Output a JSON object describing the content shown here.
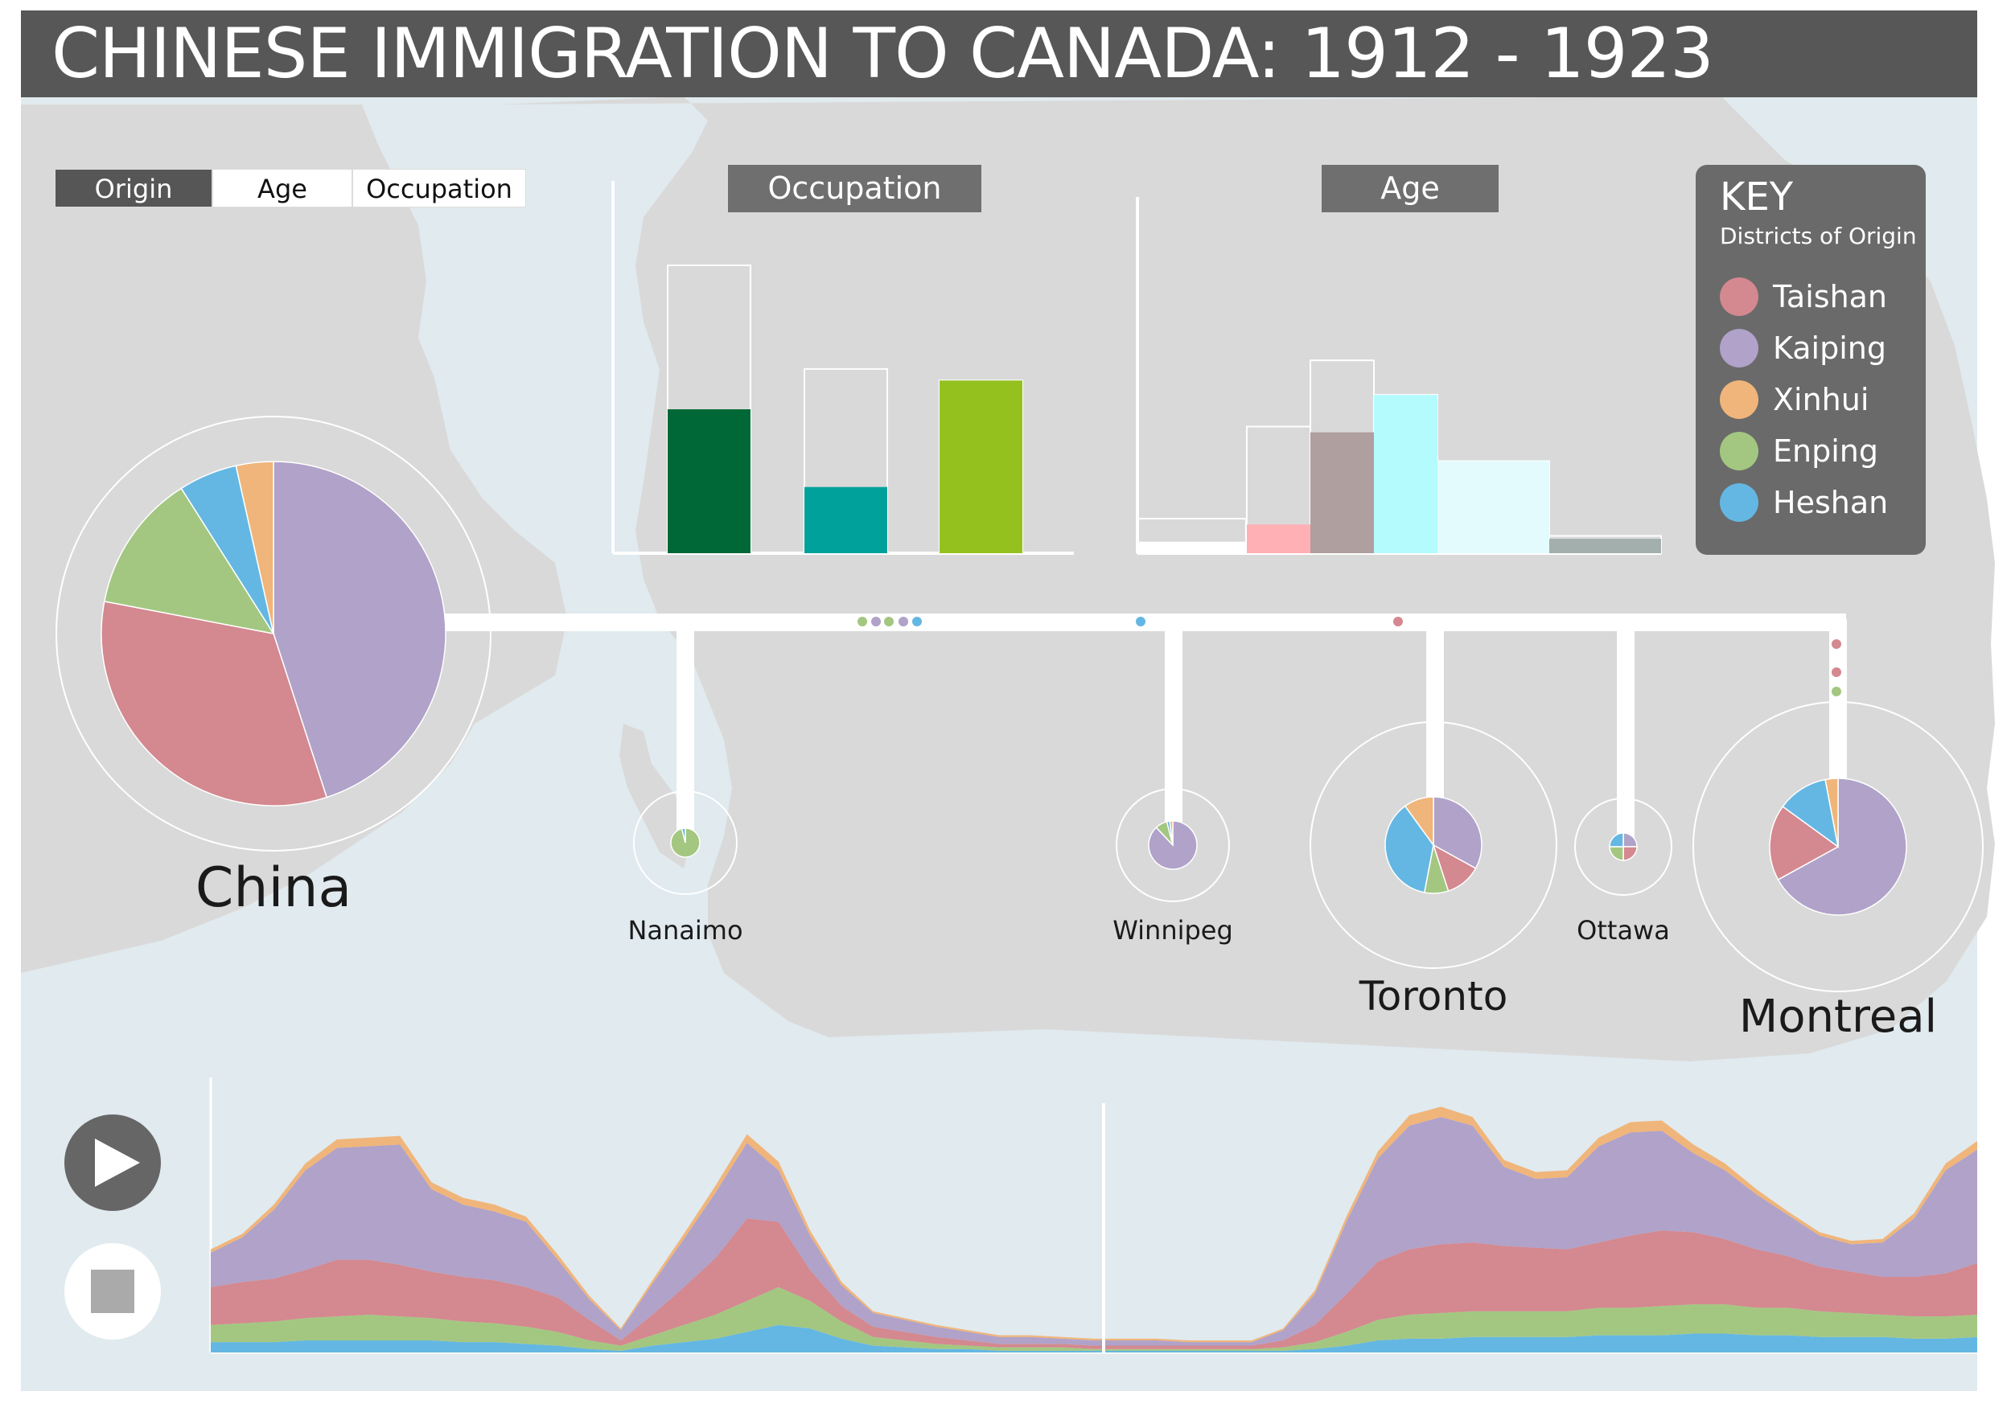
{
  "header": {
    "title": "CHINESE IMMIGRATION TO CANADA: 1912 - 1923"
  },
  "tabs": [
    {
      "label": "Origin",
      "active": true
    },
    {
      "label": "Age",
      "active": false
    },
    {
      "label": "Occupation",
      "active": false
    }
  ],
  "key": {
    "title": "KEY",
    "subtitle": "Districts of Origin",
    "items": [
      {
        "label": "Taishan",
        "color": "#d4888f"
      },
      {
        "label": "Kaiping",
        "color": "#b0a2c9"
      },
      {
        "label": "Xinhui",
        "color": "#f0b57a"
      },
      {
        "label": "Enping",
        "color": "#a3c781"
      },
      {
        "label": "Heshan",
        "color": "#64b7e3"
      }
    ]
  },
  "controls": {
    "play_icon": "play-icon",
    "stop_icon": "stop-icon"
  },
  "chart_data": [
    {
      "type": "bar",
      "title": "Occupation",
      "xlabel": "",
      "ylabel": "",
      "ylim": [
        0,
        100
      ],
      "categories": [
        "",
        "",
        ""
      ],
      "series": [
        {
          "values": [
            100,
            64,
            60
          ]
        },
        {
          "values": [
            50,
            23,
            60
          ]
        }
      ],
      "colors": [
        "#006837",
        "#00a19a",
        "#95c11f"
      ]
    },
    {
      "type": "bar",
      "title": "Age",
      "xlabel": "",
      "ylabel": "",
      "ylim": [
        0,
        100
      ],
      "categories": [
        "",
        "",
        "",
        "",
        "",
        ""
      ],
      "series": [
        {
          "values": [
            12,
            44,
            67,
            55,
            32,
            6
          ]
        },
        {
          "values": [
            4,
            10,
            42,
            55,
            32,
            5
          ]
        }
      ],
      "colors": [
        "#ffffff",
        "#ffb0b5",
        "#b09f9f",
        "#b4fbfd",
        "#e3fbfc",
        "#a3afad"
      ]
    },
    {
      "type": "pie",
      "title": "China",
      "categories": [
        "Taishan",
        "Kaiping",
        "Xinhui",
        "Enping",
        "Heshan"
      ],
      "values": [
        33,
        45,
        3.5,
        13,
        5.5
      ]
    },
    {
      "type": "pie",
      "title": "Nanaimo",
      "categories": [
        "Taishan",
        "Kaiping",
        "Xinhui",
        "Enping",
        "Heshan"
      ],
      "values": [
        0,
        0,
        0,
        96,
        4
      ]
    },
    {
      "type": "pie",
      "title": "Winnipeg",
      "categories": [
        "Taishan",
        "Kaiping",
        "Xinhui",
        "Enping",
        "Heshan"
      ],
      "values": [
        0,
        88,
        2,
        8,
        2
      ]
    },
    {
      "type": "pie",
      "title": "Toronto",
      "categories": [
        "Taishan",
        "Kaiping",
        "Xinhui",
        "Enping",
        "Heshan"
      ],
      "values": [
        12,
        33,
        10,
        8,
        37
      ]
    },
    {
      "type": "pie",
      "title": "Ottawa",
      "categories": [
        "Taishan",
        "Kaiping",
        "Xinhui",
        "Enping",
        "Heshan"
      ],
      "values": [
        25,
        25,
        0,
        25,
        25
      ]
    },
    {
      "type": "pie",
      "title": "Montreal",
      "categories": [
        "Taishan",
        "Kaiping",
        "Xinhui",
        "Enping",
        "Heshan"
      ],
      "values": [
        18,
        67,
        3,
        0,
        12
      ]
    },
    {
      "type": "area",
      "title": "",
      "stacked": true,
      "x": [
        0,
        1,
        2,
        3,
        4,
        5,
        6,
        7,
        8,
        9,
        10,
        11,
        12,
        13,
        14,
        15,
        16,
        17,
        18,
        19,
        20,
        21,
        22,
        23,
        24,
        25,
        26,
        27,
        28,
        29,
        30,
        31,
        32,
        33,
        34,
        35,
        36,
        37,
        38,
        39,
        40,
        41,
        42,
        43,
        44,
        45,
        46,
        47,
        48,
        49,
        50,
        51,
        52,
        53,
        54,
        55,
        56
      ],
      "series": [
        {
          "name": "Heshan",
          "values": [
            6,
            6,
            6,
            7,
            7,
            7,
            7,
            7,
            6,
            6,
            5,
            4,
            2,
            1,
            4,
            6,
            8,
            12,
            16,
            14,
            8,
            4,
            3,
            2,
            2,
            1,
            1,
            1,
            1,
            1,
            1,
            1,
            1,
            1,
            1,
            2,
            4,
            7,
            8,
            8,
            9,
            9,
            9,
            9,
            10,
            10,
            10,
            11,
            11,
            10,
            10,
            9,
            9,
            9,
            8,
            8,
            9
          ]
        },
        {
          "name": "Enping",
          "values": [
            10,
            11,
            12,
            13,
            14,
            15,
            14,
            13,
            12,
            11,
            10,
            8,
            5,
            3,
            6,
            10,
            14,
            18,
            22,
            16,
            10,
            5,
            4,
            3,
            2,
            2,
            2,
            2,
            1,
            1,
            1,
            1,
            1,
            1,
            2,
            4,
            8,
            12,
            14,
            15,
            15,
            15,
            15,
            15,
            16,
            16,
            17,
            17,
            17,
            16,
            16,
            15,
            14,
            13,
            13,
            13,
            13
          ]
        },
        {
          "name": "Taishan",
          "values": [
            22,
            24,
            25,
            28,
            33,
            32,
            30,
            27,
            26,
            25,
            23,
            20,
            12,
            3,
            12,
            22,
            33,
            48,
            38,
            18,
            9,
            6,
            5,
            4,
            3,
            2,
            2,
            2,
            2,
            2,
            2,
            2,
            2,
            2,
            4,
            10,
            22,
            34,
            38,
            40,
            40,
            38,
            37,
            36,
            38,
            42,
            44,
            42,
            38,
            34,
            30,
            26,
            24,
            22,
            23,
            25,
            30
          ]
        },
        {
          "name": "Kaiping",
          "values": [
            20,
            26,
            40,
            58,
            65,
            66,
            70,
            48,
            42,
            40,
            38,
            22,
            12,
            6,
            18,
            28,
            38,
            44,
            30,
            20,
            12,
            8,
            7,
            6,
            5,
            4,
            4,
            3,
            3,
            3,
            3,
            2,
            2,
            2,
            6,
            18,
            42,
            60,
            72,
            74,
            68,
            46,
            40,
            42,
            56,
            60,
            58,
            46,
            40,
            32,
            24,
            18,
            16,
            20,
            34,
            60,
            66
          ]
        },
        {
          "name": "Xinhui",
          "values": [
            2,
            2,
            3,
            4,
            5,
            5,
            5,
            4,
            4,
            4,
            3,
            3,
            2,
            1,
            2,
            3,
            4,
            5,
            5,
            3,
            2,
            1,
            1,
            1,
            1,
            1,
            1,
            1,
            1,
            1,
            1,
            1,
            1,
            1,
            1,
            2,
            3,
            4,
            6,
            6,
            5,
            4,
            4,
            4,
            5,
            6,
            6,
            5,
            4,
            3,
            2,
            2,
            2,
            2,
            3,
            4,
            5
          ]
        }
      ],
      "ylim": [
        0,
        160
      ]
    }
  ]
}
